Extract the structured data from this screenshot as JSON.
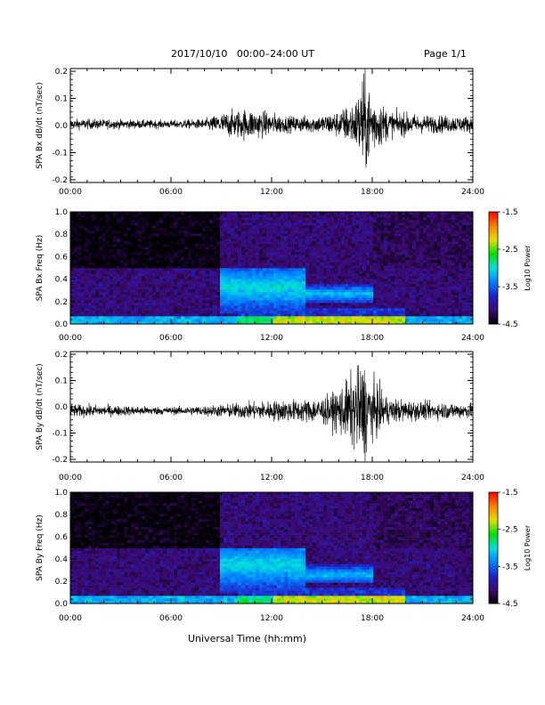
{
  "header": {
    "title": "2017/10/10   00:00–24:00 UT",
    "page": "Page 1/1"
  },
  "xaxis": {
    "label": "Universal Time (hh:mm)",
    "ticks": [
      "00:00",
      "06:00",
      "12:00",
      "18:00",
      "24:00"
    ],
    "range_hours": [
      0,
      24
    ]
  },
  "colorbar": {
    "label": "Log10 Power",
    "ticks": [
      "-1.5",
      "-2.5",
      "-3.5",
      "-4.5"
    ],
    "range": [
      -4.5,
      -1.5
    ],
    "colors": [
      "#000000",
      "#3b0a6e",
      "#2020c8",
      "#0080ff",
      "#00e0e0",
      "#00e000",
      "#e0e000",
      "#ff8000",
      "#ff0000"
    ]
  },
  "chart_data": [
    {
      "type": "line",
      "name": "panel-bx",
      "ylabel": "SPA Bx dB/dt (nT/sec)",
      "yticks": [
        "0.2",
        "0.1",
        "0.0",
        "-0.1",
        "-0.2"
      ],
      "ylim": [
        -0.21,
        0.21
      ],
      "xlim": [
        0,
        24
      ],
      "amplitude_envelope": [
        [
          0,
          0.02
        ],
        [
          6,
          0.015
        ],
        [
          8,
          0.02
        ],
        [
          9.5,
          0.05
        ],
        [
          10.5,
          0.06
        ],
        [
          11.5,
          0.05
        ],
        [
          13,
          0.03
        ],
        [
          15,
          0.035
        ],
        [
          16,
          0.05
        ],
        [
          17,
          0.09
        ],
        [
          17.5,
          0.2
        ],
        [
          18,
          0.12
        ],
        [
          19,
          0.05
        ],
        [
          21,
          0.035
        ],
        [
          24,
          0.03
        ]
      ],
      "offset": 0.005
    },
    {
      "type": "heatmap",
      "name": "panel-bx-spec",
      "ylabel": "SPA Bx Freq (Hz)",
      "yticks": [
        "1.0",
        "0.8",
        "0.6",
        "0.4",
        "0.2",
        "0.0"
      ],
      "ylim": [
        0,
        1.0
      ],
      "xlim": [
        0,
        24
      ],
      "value_range": [
        -4.5,
        -1.5
      ],
      "features": [
        {
          "t": [
            9,
            14
          ],
          "f": [
            0.1,
            0.5
          ],
          "peak_f": 0.33,
          "level": -3.0
        },
        {
          "t": [
            13,
            18
          ],
          "f": [
            0.2,
            0.35
          ],
          "peak_f": 0.27,
          "level": -3.1
        }
      ]
    },
    {
      "type": "line",
      "name": "panel-by",
      "ylabel": "SPA By dB/dt (nT/sec)",
      "yticks": [
        "0.2",
        "0.1",
        "0.0",
        "-0.1",
        "-0.2"
      ],
      "ylim": [
        -0.21,
        0.21
      ],
      "xlim": [
        0,
        24
      ],
      "amplitude_envelope": [
        [
          0,
          0.025
        ],
        [
          6,
          0.015
        ],
        [
          8,
          0.02
        ],
        [
          10,
          0.03
        ],
        [
          12,
          0.04
        ],
        [
          14,
          0.045
        ],
        [
          15.5,
          0.06
        ],
        [
          16.5,
          0.12
        ],
        [
          17.5,
          0.2
        ],
        [
          18,
          0.12
        ],
        [
          19,
          0.05
        ],
        [
          21,
          0.035
        ],
        [
          24,
          0.03
        ]
      ],
      "offset": -0.015
    },
    {
      "type": "heatmap",
      "name": "panel-by-spec",
      "ylabel": "SPA By Freq (Hz)",
      "yticks": [
        "1.0",
        "0.8",
        "0.6",
        "0.4",
        "0.2",
        "0.0"
      ],
      "ylim": [
        0,
        1.0
      ],
      "xlim": [
        0,
        24
      ],
      "value_range": [
        -4.5,
        -1.5
      ],
      "features": [
        {
          "t": [
            9,
            14
          ],
          "f": [
            0.1,
            0.5
          ],
          "peak_f": 0.35,
          "level": -3.0
        },
        {
          "t": [
            13,
            18
          ],
          "f": [
            0.2,
            0.35
          ],
          "peak_f": 0.26,
          "level": -3.1
        }
      ]
    }
  ]
}
